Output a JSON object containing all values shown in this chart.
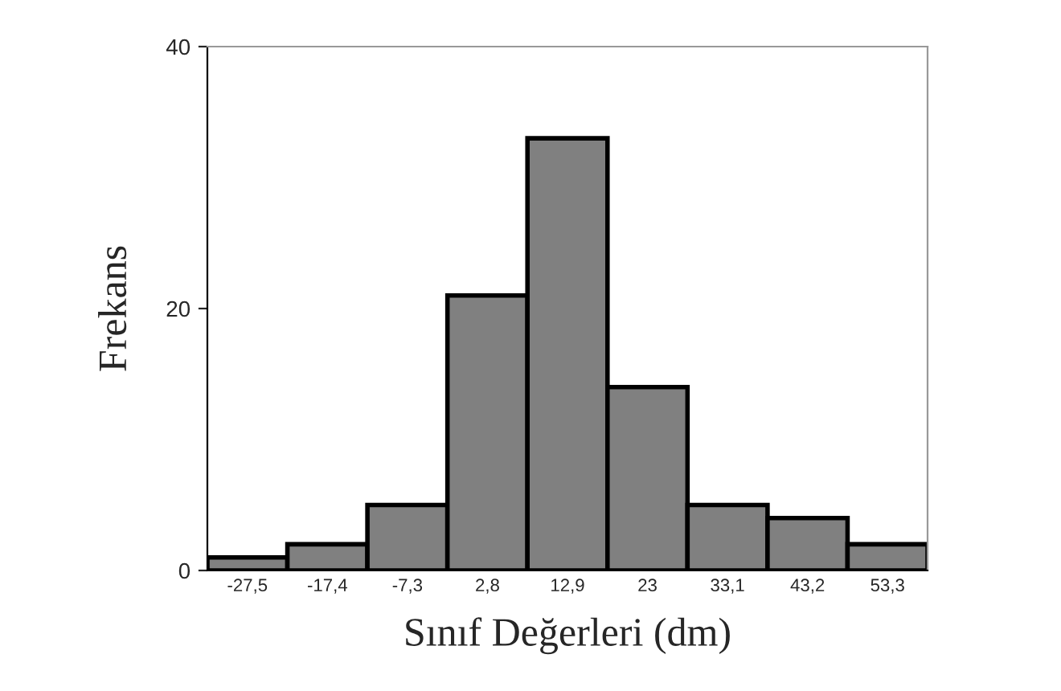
{
  "chart_data": {
    "type": "bar",
    "xlabel": "Sınıf Değerleri (dm)",
    "ylabel": "Frekans",
    "categories": [
      "-27,5",
      "-17,4",
      "-7,3",
      "2,8",
      "12,9",
      "23",
      "33,1",
      "43,2",
      "53,3"
    ],
    "values": [
      1,
      2,
      5,
      21,
      33,
      14,
      5,
      4,
      2
    ],
    "color": "#808080",
    "ylim": [
      0,
      40
    ],
    "yticks": [
      0,
      20,
      40
    ],
    "grid": false
  }
}
